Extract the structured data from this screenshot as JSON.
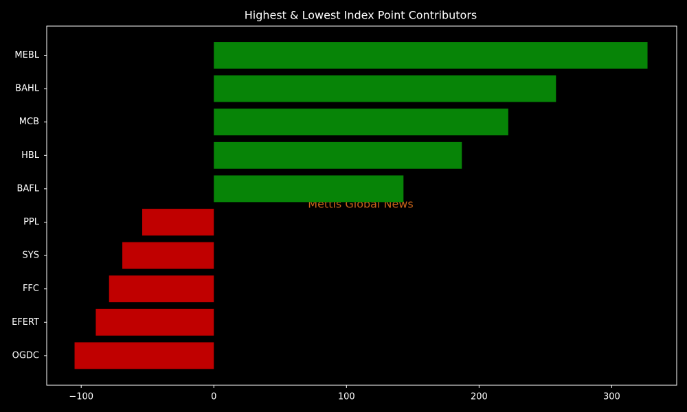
{
  "chart_data": {
    "type": "barh",
    "title": "Highest & Lowest Index Point Contributors",
    "categories": [
      "MEBL",
      "BAHL",
      "MCB",
      "HBL",
      "BAFL",
      "PPL",
      "SYS",
      "FFC",
      "EFERT",
      "OGDC"
    ],
    "values": [
      327,
      258,
      222,
      187,
      143,
      -54,
      -69,
      -79,
      -89,
      -105
    ],
    "colors": [
      "#078407",
      "#078407",
      "#078407",
      "#078407",
      "#078407",
      "#c00000",
      "#c00000",
      "#c00000",
      "#c00000",
      "#c00000"
    ],
    "xlim": [
      -126,
      349
    ],
    "xticks": [
      {
        "value": -100,
        "label": "−100"
      },
      0,
      100,
      200,
      300
    ],
    "watermark": "Mettis Global News"
  }
}
